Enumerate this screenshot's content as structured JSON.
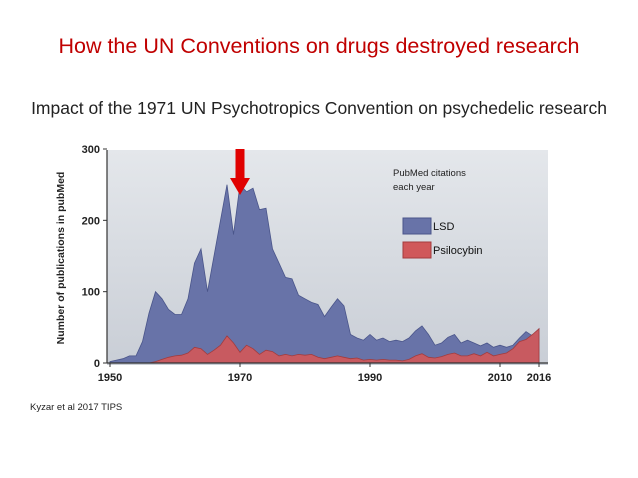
{
  "slide": {
    "title": "How the UN Conventions on drugs destroyed research",
    "subtitle": "Impact of the 1971 UN Psychotropics Convention on psychedelic research",
    "citation": "Kyzar et al 2017 TIPS"
  },
  "colors": {
    "title": "#c00000",
    "lsd_fill": "#6873a8",
    "lsd_stroke": "#4a558a",
    "psilocybin_fill": "#d0585a",
    "psilocybin_stroke": "#a33b3d",
    "arrow": "#e00000",
    "plot_bg": "#dde1e6"
  },
  "chart_data": {
    "type": "area",
    "ylabel": "Number of publications in pubMed",
    "xlabel": "",
    "xlim": [
      1950,
      2016
    ],
    "ylim": [
      0,
      300
    ],
    "x_ticks": [
      "1950",
      "1970",
      "1990",
      "2010",
      "2016"
    ],
    "y_ticks": [
      "0",
      "100",
      "200",
      "300"
    ],
    "annotation": [
      "PubMed citations",
      "each year"
    ],
    "legend_position": "right",
    "arrow_at_year": 1970,
    "series": [
      {
        "name": "LSD",
        "points": [
          [
            1950,
            2
          ],
          [
            1951,
            4
          ],
          [
            1952,
            6
          ],
          [
            1953,
            10
          ],
          [
            1954,
            10
          ],
          [
            1955,
            30
          ],
          [
            1956,
            70
          ],
          [
            1957,
            100
          ],
          [
            1958,
            90
          ],
          [
            1959,
            75
          ],
          [
            1960,
            68
          ],
          [
            1961,
            68
          ],
          [
            1962,
            90
          ],
          [
            1963,
            140
          ],
          [
            1964,
            160
          ],
          [
            1965,
            100
          ],
          [
            1966,
            150
          ],
          [
            1967,
            200
          ],
          [
            1968,
            250
          ],
          [
            1969,
            180
          ],
          [
            1970,
            250
          ],
          [
            1971,
            240
          ],
          [
            1972,
            245
          ],
          [
            1973,
            215
          ],
          [
            1974,
            217
          ],
          [
            1975,
            160
          ],
          [
            1976,
            140
          ],
          [
            1977,
            120
          ],
          [
            1978,
            118
          ],
          [
            1979,
            95
          ],
          [
            1980,
            90
          ],
          [
            1981,
            85
          ],
          [
            1982,
            82
          ],
          [
            1983,
            65
          ],
          [
            1984,
            78
          ],
          [
            1985,
            90
          ],
          [
            1986,
            80
          ],
          [
            1987,
            40
          ],
          [
            1988,
            35
          ],
          [
            1989,
            32
          ],
          [
            1990,
            40
          ],
          [
            1991,
            32
          ],
          [
            1992,
            35
          ],
          [
            1993,
            30
          ],
          [
            1994,
            32
          ],
          [
            1995,
            30
          ],
          [
            1996,
            35
          ],
          [
            1997,
            45
          ],
          [
            1998,
            52
          ],
          [
            1999,
            40
          ],
          [
            2000,
            25
          ],
          [
            2001,
            28
          ],
          [
            2002,
            36
          ],
          [
            2003,
            40
          ],
          [
            2004,
            28
          ],
          [
            2005,
            32
          ],
          [
            2006,
            28
          ],
          [
            2007,
            24
          ],
          [
            2008,
            28
          ],
          [
            2009,
            22
          ],
          [
            2010,
            25
          ],
          [
            2011,
            22
          ],
          [
            2012,
            25
          ],
          [
            2013,
            35
          ],
          [
            2014,
            44
          ],
          [
            2015,
            38
          ],
          [
            2016,
            48
          ]
        ]
      },
      {
        "name": "Psilocybin",
        "points": [
          [
            1950,
            0
          ],
          [
            1956,
            0
          ],
          [
            1957,
            2
          ],
          [
            1958,
            5
          ],
          [
            1959,
            8
          ],
          [
            1960,
            10
          ],
          [
            1961,
            11
          ],
          [
            1962,
            14
          ],
          [
            1963,
            22
          ],
          [
            1964,
            20
          ],
          [
            1965,
            12
          ],
          [
            1966,
            18
          ],
          [
            1967,
            25
          ],
          [
            1968,
            38
          ],
          [
            1969,
            28
          ],
          [
            1970,
            15
          ],
          [
            1971,
            25
          ],
          [
            1972,
            20
          ],
          [
            1973,
            12
          ],
          [
            1974,
            18
          ],
          [
            1975,
            16
          ],
          [
            1976,
            10
          ],
          [
            1977,
            12
          ],
          [
            1978,
            10
          ],
          [
            1979,
            12
          ],
          [
            1980,
            11
          ],
          [
            1981,
            12
          ],
          [
            1982,
            8
          ],
          [
            1983,
            6
          ],
          [
            1984,
            8
          ],
          [
            1985,
            10
          ],
          [
            1986,
            8
          ],
          [
            1987,
            6
          ],
          [
            1988,
            7
          ],
          [
            1989,
            4
          ],
          [
            1990,
            5
          ],
          [
            1991,
            4
          ],
          [
            1992,
            5
          ],
          [
            1993,
            4
          ],
          [
            1994,
            4
          ],
          [
            1995,
            3
          ],
          [
            1996,
            5
          ],
          [
            1997,
            10
          ],
          [
            1998,
            13
          ],
          [
            1999,
            8
          ],
          [
            2000,
            7
          ],
          [
            2001,
            9
          ],
          [
            2002,
            12
          ],
          [
            2003,
            14
          ],
          [
            2004,
            10
          ],
          [
            2005,
            10
          ],
          [
            2006,
            13
          ],
          [
            2007,
            10
          ],
          [
            2008,
            15
          ],
          [
            2009,
            10
          ],
          [
            2010,
            12
          ],
          [
            2011,
            14
          ],
          [
            2012,
            20
          ],
          [
            2013,
            30
          ],
          [
            2014,
            33
          ],
          [
            2015,
            40
          ],
          [
            2016,
            48
          ]
        ]
      }
    ]
  }
}
